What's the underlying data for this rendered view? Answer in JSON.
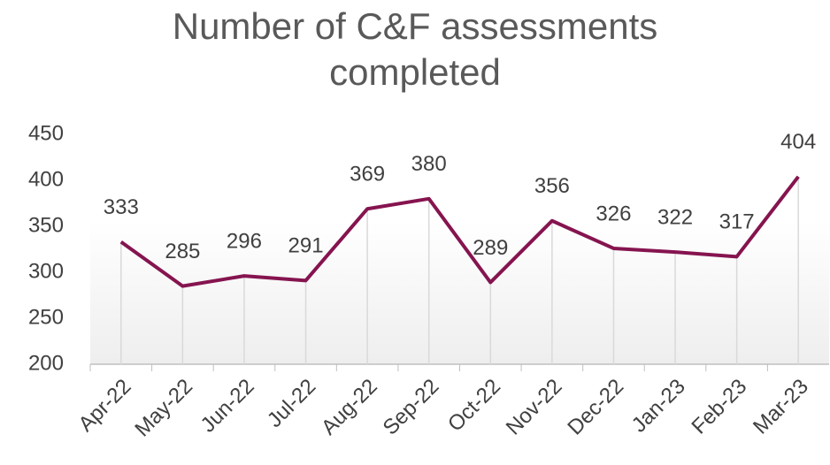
{
  "chart_data": {
    "type": "line",
    "title": "Number of C&F assessments completed",
    "categories": [
      "Apr-22",
      "May-22",
      "Jun-22",
      "Jul-22",
      "Aug-22",
      "Sep-22",
      "Oct-22",
      "Nov-22",
      "Dec-22",
      "Jan-23",
      "Feb-23",
      "Mar-23"
    ],
    "values": [
      333,
      285,
      296,
      291,
      369,
      380,
      289,
      356,
      326,
      322,
      317,
      404
    ],
    "color": "#85144f",
    "ylim": [
      200,
      450
    ],
    "yticks": [
      200,
      250,
      300,
      350,
      400,
      450
    ],
    "drop_lines": true
  }
}
